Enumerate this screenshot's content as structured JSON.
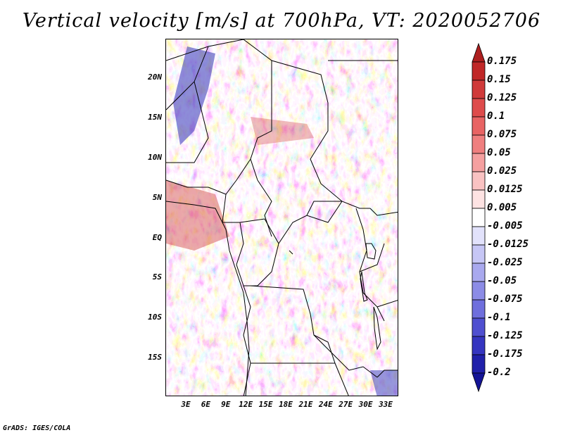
{
  "title": "Vertical velocity [m/s] at 700hPa, VT: 2020052706",
  "credit": "GrADS: IGES/COLA",
  "lat_labels": [
    "20N",
    "15N",
    "10N",
    "5N",
    "EQ",
    "5S",
    "10S",
    "15S"
  ],
  "lon_labels": [
    "3E",
    "6E",
    "9E",
    "12E",
    "15E",
    "18E",
    "21E",
    "24E",
    "27E",
    "30E",
    "33E"
  ],
  "colorbar": {
    "labels": [
      "0.175",
      "0.15",
      "0.125",
      "0.1",
      "0.075",
      "0.05",
      "0.025",
      "0.0125",
      "0.005",
      "-0.005",
      "-0.0125",
      "-0.025",
      "-0.05",
      "-0.075",
      "-0.1",
      "-0.125",
      "-0.175",
      "-0.2"
    ],
    "colors": [
      "#ad1f1f",
      "#c02828",
      "#d03a3a",
      "#de4c4c",
      "#e86464",
      "#ef7f7f",
      "#f5a0a0",
      "#f9c2c2",
      "#fde3e3",
      "#ffffff",
      "#e2e2fb",
      "#c6c6f5",
      "#a9a9ee",
      "#8c8ce6",
      "#6f6fdd",
      "#4f4fd0",
      "#3535c0",
      "#2020aa",
      "#141496"
    ]
  }
}
